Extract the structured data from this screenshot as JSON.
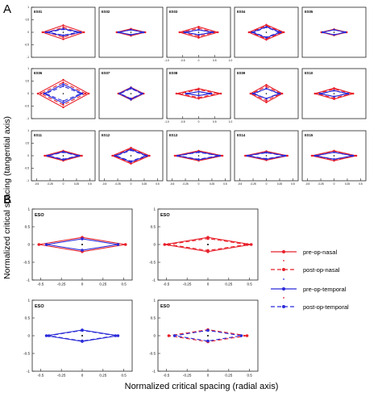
{
  "figure": {
    "ylabel": "Normalized critical spacing (tangential axis)",
    "xlabel": "Normalized critical spacing (radial axis)",
    "panel_a_letter": "A",
    "panel_b_letter": "B"
  },
  "legend": {
    "entries": [
      {
        "label": "pre-op-nasal",
        "color": "#e8202a",
        "style": "solid-marker"
      },
      {
        "label": "",
        "color": "#e8202a",
        "style": "dot"
      },
      {
        "label": "post-op-nasal",
        "color": "#e8202a",
        "style": "dashed-marker"
      },
      {
        "label": "",
        "color": "#2b2bd9",
        "style": "dot"
      },
      {
        "label": "pre-op-temporal",
        "color": "#2b2bd9",
        "style": "solid-marker"
      },
      {
        "label": "",
        "color": "#e8202a",
        "style": "dot"
      },
      {
        "label": "post-op-temporal",
        "color": "#2b2bd9",
        "style": "dashed-marker"
      }
    ]
  },
  "colors": {
    "nasal": "#e8202a",
    "temporal": "#2b2bd9"
  },
  "chart_data": [
    {
      "type": "line",
      "panel": "A",
      "ylim": [
        -1,
        1
      ],
      "yticks": [
        "1",
        "0.5",
        "0",
        "-0.5",
        "-1"
      ],
      "subplots": [
        {
          "title": "ES01",
          "pre_nasal": [
            0.65,
            0.28
          ],
          "post_nasal": [
            0.5,
            0.2
          ],
          "pre_temporal": [
            0.55,
            0.14
          ],
          "post_temporal": [
            0.45,
            0.12
          ]
        },
        {
          "title": "ES02",
          "pre_nasal": [
            0.45,
            0.14
          ],
          "post_nasal": [
            0.42,
            0.12
          ],
          "pre_temporal": [
            0.4,
            0.1
          ],
          "post_temporal": [
            0.38,
            0.1
          ]
        },
        {
          "title": "ES03",
          "pre_nasal": [
            0.6,
            0.22
          ],
          "post_nasal": [
            0.5,
            0.16
          ],
          "pre_temporal": [
            0.45,
            0.1
          ],
          "post_temporal": [
            0.4,
            0.1
          ]
        },
        {
          "title": "ES04",
          "pre_nasal": [
            0.55,
            0.3
          ],
          "post_nasal": [
            0.5,
            0.26
          ],
          "pre_temporal": [
            0.45,
            0.22
          ],
          "post_temporal": [
            0.4,
            0.2
          ]
        },
        {
          "title": "ES05",
          "pre_nasal": [
            0.4,
            0.12
          ],
          "post_nasal": [
            0.38,
            0.12
          ],
          "pre_temporal": [
            0.36,
            0.1
          ],
          "post_temporal": [
            0.34,
            0.1
          ]
        },
        {
          "title": "ES06",
          "pre_nasal": [
            0.8,
            0.55
          ],
          "post_nasal": [
            0.7,
            0.45
          ],
          "pre_temporal": [
            0.6,
            0.38
          ],
          "post_temporal": [
            0.55,
            0.3
          ]
        },
        {
          "title": "ES07",
          "pre_nasal": [
            0.4,
            0.25
          ],
          "post_nasal": [
            0.38,
            0.2
          ],
          "pre_temporal": [
            0.36,
            0.24
          ],
          "post_temporal": [
            0.34,
            0.2
          ]
        },
        {
          "title": "ES08",
          "pre_nasal": [
            0.7,
            0.2
          ],
          "post_nasal": [
            0.6,
            0.16
          ],
          "pre_temporal": [
            0.4,
            0.08
          ],
          "post_temporal": [
            0.35,
            0.08
          ]
        },
        {
          "title": "ES09",
          "pre_nasal": [
            0.5,
            0.35
          ],
          "post_nasal": [
            0.45,
            0.28
          ],
          "pre_temporal": [
            0.42,
            0.2
          ],
          "post_temporal": [
            0.38,
            0.2
          ]
        },
        {
          "title": "ES10",
          "pre_nasal": [
            0.6,
            0.22
          ],
          "post_nasal": [
            0.55,
            0.18
          ],
          "pre_temporal": [
            0.45,
            0.12
          ],
          "post_temporal": [
            0.4,
            0.12
          ]
        },
        {
          "title": "ES11",
          "pre_nasal": [
            0.35,
            0.2
          ],
          "post_nasal": [
            0.32,
            0.18
          ],
          "pre_temporal": [
            0.3,
            0.16
          ],
          "post_temporal": [
            0.28,
            0.14
          ]
        },
        {
          "title": "ES12",
          "pre_nasal": [
            0.35,
            0.32
          ],
          "post_nasal": [
            0.32,
            0.28
          ],
          "pre_temporal": [
            0.3,
            0.25
          ],
          "post_temporal": [
            0.28,
            0.22
          ]
        },
        {
          "title": "ES13",
          "pre_nasal": [
            0.45,
            0.2
          ],
          "post_nasal": [
            0.42,
            0.18
          ],
          "pre_temporal": [
            0.4,
            0.16
          ],
          "post_temporal": [
            0.38,
            0.14
          ]
        },
        {
          "title": "ES14",
          "pre_nasal": [
            0.4,
            0.18
          ],
          "post_nasal": [
            0.38,
            0.16
          ],
          "pre_temporal": [
            0.36,
            0.14
          ],
          "post_temporal": [
            0.34,
            0.12
          ]
        },
        {
          "title": "ES15",
          "pre_nasal": [
            0.42,
            0.2
          ],
          "post_nasal": [
            0.4,
            0.18
          ],
          "pre_temporal": [
            0.36,
            0.14
          ],
          "post_temporal": [
            0.34,
            0.14
          ]
        }
      ],
      "xticks_row3": [
        "-0.5",
        "-0.25",
        "0",
        "0.25",
        "0.5"
      ],
      "xticks_ES03": [
        "-1.0",
        "-0.5",
        "0",
        "0.5",
        "1.0"
      ],
      "xticks_ES08": [
        "-1.0",
        "-0.5",
        "0",
        "0.5",
        "1.0"
      ]
    },
    {
      "type": "line",
      "panel": "B",
      "xlim": [
        -0.6,
        0.6
      ],
      "ylim": [
        -1,
        1
      ],
      "xticks": [
        "-0.5",
        "-0.25",
        "0",
        "0.25",
        "0.5"
      ],
      "yticks": [
        "1",
        "0.5",
        "0",
        "-0.5",
        "-1"
      ],
      "subplots": [
        {
          "title": "ESO",
          "series": [
            {
              "key": "pre_nasal",
              "rx": 0.52,
              "ry": 0.2
            },
            {
              "key": "pre_temporal",
              "rx": 0.43,
              "ry": 0.16
            }
          ]
        },
        {
          "title": "ESO",
          "series": [
            {
              "key": "pre_nasal",
              "rx": 0.52,
              "ry": 0.2
            },
            {
              "key": "post_nasal",
              "rx": 0.47,
              "ry": 0.17
            }
          ]
        },
        {
          "title": "ESO",
          "series": [
            {
              "key": "pre_temporal",
              "rx": 0.43,
              "ry": 0.16
            },
            {
              "key": "post_temporal",
              "rx": 0.4,
              "ry": 0.15
            }
          ]
        },
        {
          "title": "ESO",
          "series": [
            {
              "key": "post_nasal",
              "rx": 0.47,
              "ry": 0.17
            },
            {
              "key": "post_temporal",
              "rx": 0.4,
              "ry": 0.15
            }
          ]
        }
      ]
    }
  ]
}
